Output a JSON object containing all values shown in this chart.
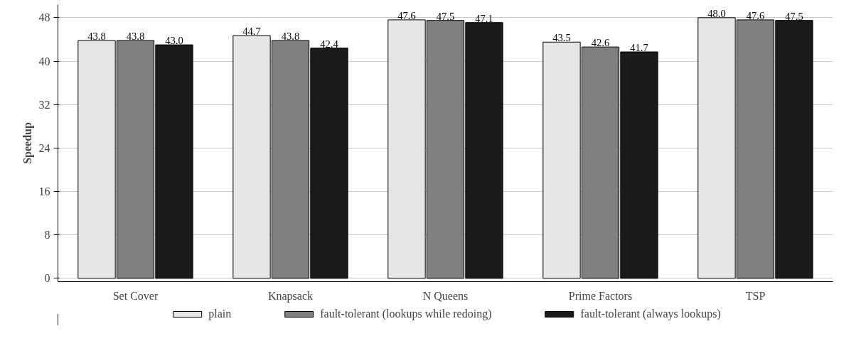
{
  "chart_data": {
    "type": "bar",
    "ylabel": "Speedup",
    "categories": [
      "Set Cover",
      "Knapsack",
      "N Queens",
      "Prime Factors",
      "TSP"
    ],
    "series": [
      {
        "name": "plain",
        "color": "#e6e6e6",
        "values": [
          43.8,
          44.7,
          47.6,
          43.5,
          48.0
        ],
        "value_labels": [
          "43.8",
          "44.7",
          "47.6",
          "43.5",
          "48.0"
        ]
      },
      {
        "name": "fault-tolerant (lookups while redoing)",
        "color": "#808080",
        "values": [
          43.8,
          43.8,
          47.5,
          42.6,
          47.6
        ],
        "value_labels": [
          "43.8",
          "43.8",
          "47.5",
          "42.6",
          "47.6"
        ]
      },
      {
        "name": "fault-tolerant (always lookups)",
        "color": "#1a1a1a",
        "values": [
          43.0,
          42.4,
          47.1,
          41.7,
          47.5
        ],
        "value_labels": [
          "43.0",
          "42.4",
          "47.1",
          "41.7",
          "47.5"
        ]
      }
    ],
    "ylim": [
      -0.6,
      50.4
    ],
    "yticks": [
      0,
      8,
      16,
      24,
      32,
      40,
      48
    ],
    "grid": "y",
    "legend": "bottom"
  }
}
